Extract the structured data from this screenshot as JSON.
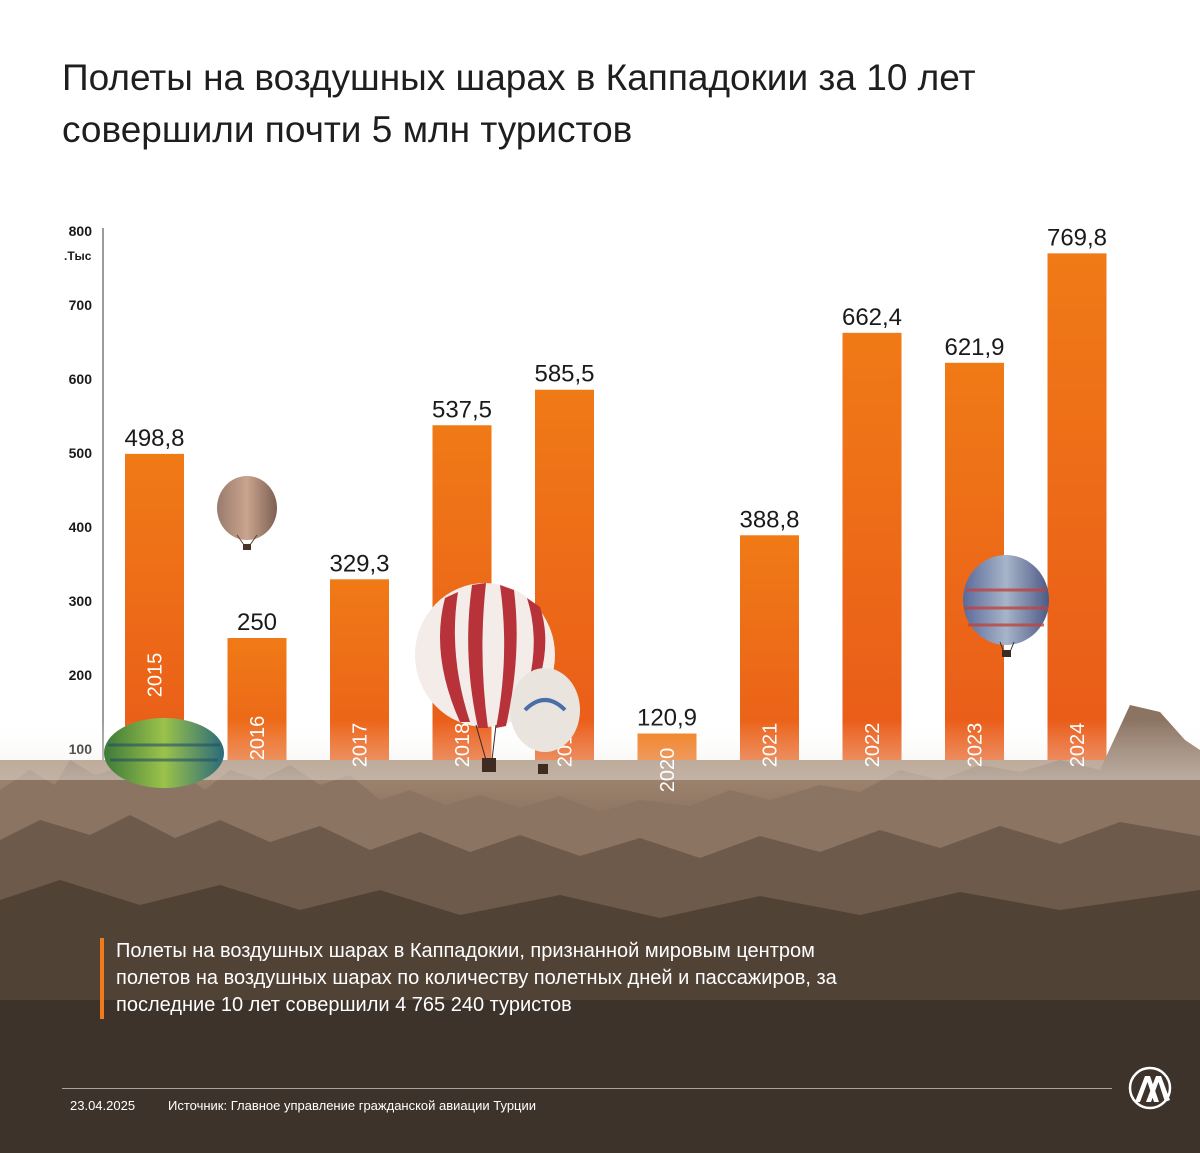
{
  "title": "Полеты на воздушных шарах в Каппадокии за 10 лет совершили почти 5 млн туристов",
  "note": "Полеты на воздушных шарах в Каппадокии, признанной мировым центром полетов на воздушных шарах по количеству полетных дней и пассажиров, за последние 10 лет совершили  4 765 240 туристов",
  "footer": {
    "date": "23.04.2025",
    "source": "Источник: Главное управление гражданской авиации Турции"
  },
  "logo": {
    "text": "AA",
    "icon": "anadolu-agency-logo"
  },
  "colors": {
    "bar_top": "#f07a16",
    "bar_bottom": "#e8561a",
    "accent": "#f07b1a",
    "ground": "#8a6f5c"
  },
  "chart_data": {
    "type": "bar",
    "title": "",
    "xlabel": "",
    "ylabel": "",
    "y_unit_label": ".Тыс",
    "ylim": [
      0,
      800
    ],
    "yticks": [
      "100",
      "200",
      "300",
      "400",
      "500",
      "600",
      "700",
      "800"
    ],
    "grid": false,
    "categories": [
      "2015",
      "2016",
      "2017",
      "2018",
      "2019",
      "2020",
      "2021",
      "2022",
      "2023",
      "2024"
    ],
    "values": [
      498.8,
      250,
      329.3,
      537.5,
      585.5,
      120.9,
      388.8,
      662.4,
      621.9,
      769.8
    ],
    "value_labels": [
      "498,8",
      "250",
      "329,3",
      "537,5",
      "585,5",
      "120,9",
      "388,8",
      "662,4",
      "621,9",
      "769,8"
    ]
  }
}
